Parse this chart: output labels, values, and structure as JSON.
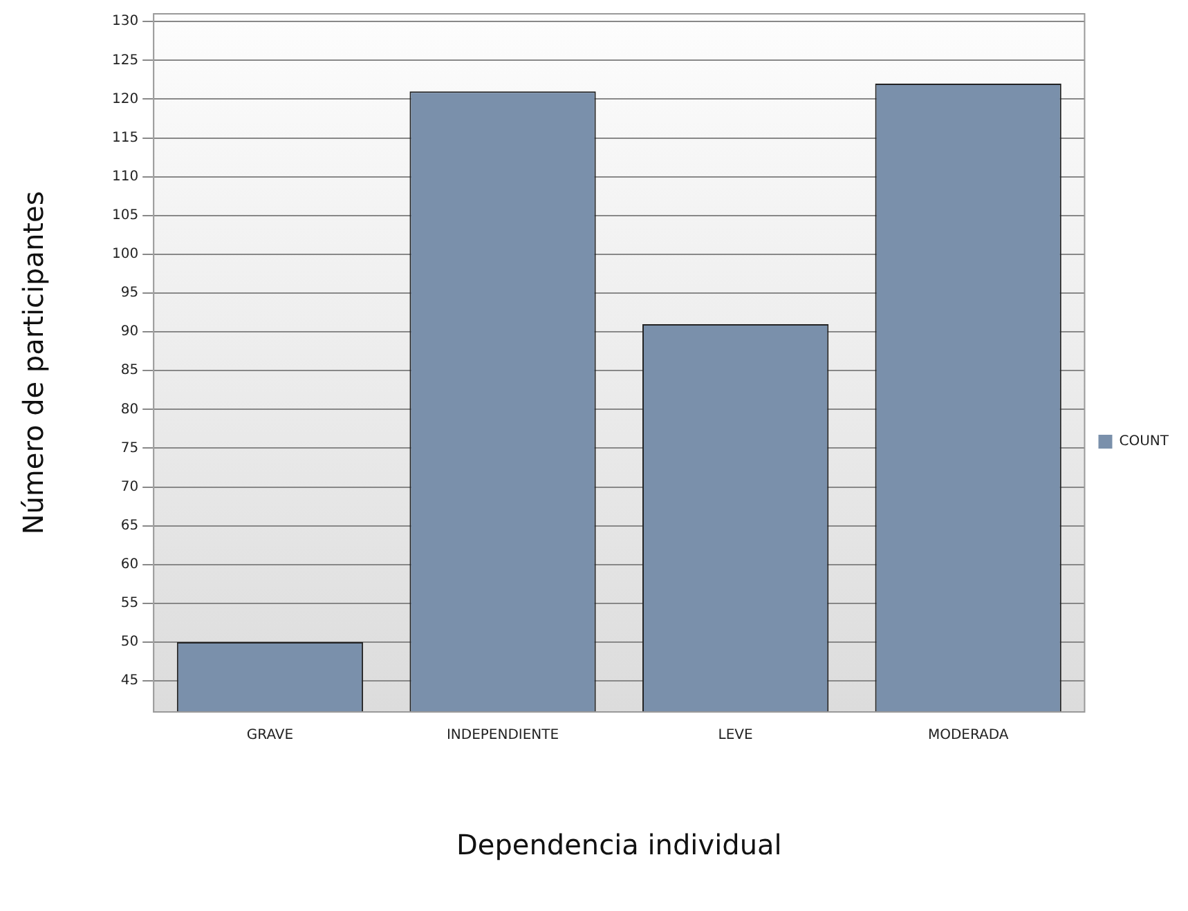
{
  "chart_data": {
    "type": "bar",
    "xlabel": "Dependencia individual",
    "ylabel": "Número de participantes",
    "categories": [
      "GRAVE",
      "INDEPENDIENTE",
      "LEVE",
      "MODERADA"
    ],
    "series": [
      {
        "name": "COUNT",
        "color": "#7a90ab",
        "values": [
          50,
          121,
          91,
          122
        ]
      }
    ],
    "ylim": [
      41,
      131
    ],
    "yticks": [
      45,
      50,
      55,
      60,
      65,
      70,
      75,
      80,
      85,
      90,
      95,
      100,
      105,
      110,
      115,
      120,
      125,
      130
    ],
    "grid": "y",
    "legend": "right"
  }
}
